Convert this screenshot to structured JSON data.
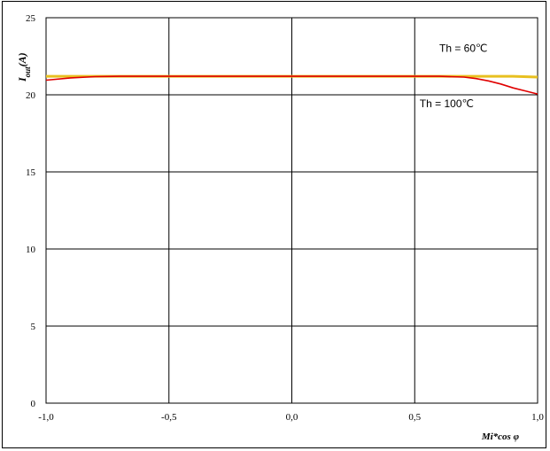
{
  "chart_data": {
    "type": "line",
    "xlabel": "Mi*cos φ",
    "ylabel_main": "I",
    "ylabel_sub": "out",
    "ylabel_unit": "(A)",
    "xlim": [
      -1.0,
      1.0
    ],
    "ylim": [
      0,
      25
    ],
    "x_ticks": [
      "-1,0",
      "-0,5",
      "0,0",
      "0,5",
      "1,0"
    ],
    "y_ticks": [
      "0",
      "5",
      "10",
      "15",
      "20",
      "25"
    ],
    "x_tick_values": [
      -1.0,
      -0.5,
      0.0,
      0.5,
      1.0
    ],
    "y_tick_values": [
      0,
      5,
      10,
      15,
      20,
      25
    ],
    "grid": true,
    "series": [
      {
        "color": "#e8c020",
        "x": [
          -1.0,
          -0.9,
          -0.75,
          -0.5,
          -0.25,
          0.0,
          0.25,
          0.5,
          0.75,
          0.9,
          1.0
        ],
        "y": [
          21.2,
          21.2,
          21.2,
          21.2,
          21.2,
          21.2,
          21.2,
          21.2,
          21.2,
          21.2,
          21.15
        ]
      },
      {
        "color": "#e00000",
        "x": [
          -1.0,
          -0.9,
          -0.8,
          -0.7,
          -0.5,
          -0.25,
          0.0,
          0.25,
          0.5,
          0.6,
          0.7,
          0.75,
          0.8,
          0.85,
          0.9,
          0.95,
          1.0
        ],
        "y": [
          20.95,
          21.1,
          21.18,
          21.2,
          21.2,
          21.2,
          21.2,
          21.2,
          21.2,
          21.2,
          21.15,
          21.05,
          20.9,
          20.7,
          20.45,
          20.25,
          20.05
        ]
      }
    ],
    "annotations": [
      {
        "text": "Th = 60℃",
        "x": 0.6,
        "y": 22.8
      },
      {
        "text": "Th = 100℃",
        "x": 0.52,
        "y": 19.2
      }
    ]
  }
}
